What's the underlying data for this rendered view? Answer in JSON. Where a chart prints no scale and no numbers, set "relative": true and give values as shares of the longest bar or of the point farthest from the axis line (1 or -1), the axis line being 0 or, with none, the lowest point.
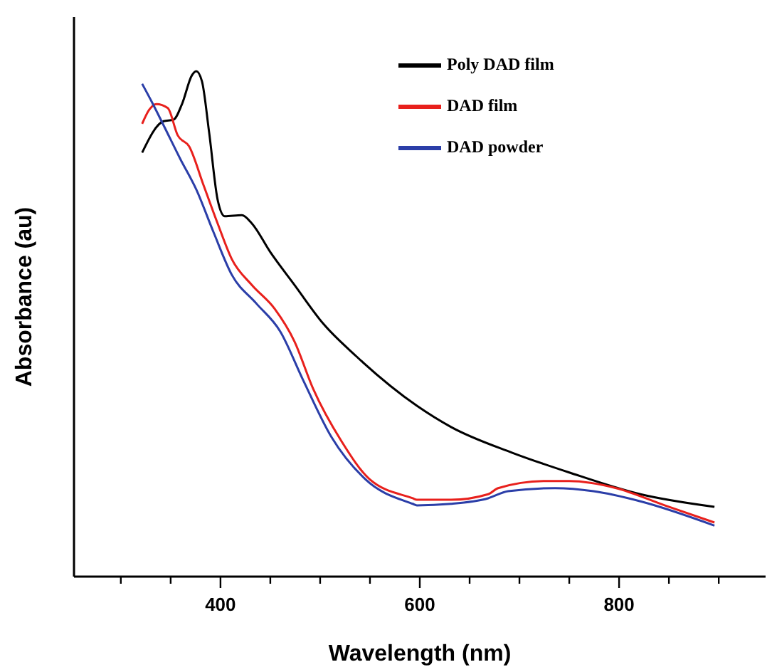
{
  "chart_data": {
    "type": "line",
    "relative": true,
    "xlabel": "Wavelength (nm)",
    "ylabel": "Absorbance (au)",
    "xlim": [
      253,
      947
    ],
    "xticks": [
      {
        "value": 300,
        "label": null
      },
      {
        "value": 350,
        "label": null
      },
      400,
      {
        "value": 450,
        "label": null
      },
      {
        "value": 500,
        "label": null
      },
      {
        "value": 550,
        "label": null
      },
      600,
      {
        "value": 650,
        "label": null
      },
      {
        "value": 700,
        "label": null
      },
      {
        "value": 750,
        "label": null
      },
      800,
      {
        "value": 850,
        "label": null
      },
      {
        "value": 900,
        "label": null
      }
    ],
    "legend": "top right",
    "grid": false,
    "marker": "none",
    "line_style": "solid",
    "series": [
      {
        "name": "Poly DAD film",
        "color": "#000000",
        "x": [
          321.4,
          342.9,
          352.9,
          361.4,
          371.4,
          375.7,
          381.4,
          388.6,
          397.1,
          404.3,
          421.4,
          431.4,
          450.0,
          474.3,
          502.9,
          535.7,
          597.1,
          631.4,
          692.9,
          750.0,
          821.4,
          895.7
        ],
        "values": [
          0.839,
          0.901,
          0.904,
          0.935,
          0.992,
          1,
          0.98,
          0.879,
          0.746,
          0.713,
          0.715,
          0.699,
          0.642,
          0.577,
          0.501,
          0.437,
          0.338,
          0.296,
          0.245,
          0.206,
          0.163,
          0.138
        ]
      },
      {
        "name": "DAD film",
        "color": "#e8201c",
        "x": [
          321.4,
          328.6,
          335.7,
          347.1,
          357.1,
          368.6,
          382.9,
          397.1,
          411.4,
          431.4,
          454.3,
          474.3,
          492.9,
          521.4,
          550.0,
          592.9,
          597.1,
          631.4,
          668.6,
          678.6,
          725.7,
          750.0,
          797.1,
          845.7,
          895.7
        ],
        "values": [
          0.896,
          0.924,
          0.935,
          0.927,
          0.873,
          0.851,
          0.775,
          0.699,
          0.628,
          0.577,
          0.53,
          0.465,
          0.372,
          0.268,
          0.192,
          0.155,
          0.152,
          0.152,
          0.163,
          0.175,
          0.189,
          0.189,
          0.175,
          0.141,
          0.107
        ]
      },
      {
        "name": "DAD powder",
        "color": "#2b3ea8",
        "x": [
          321.4,
          331.4,
          342.9,
          360.0,
          375.7,
          392.9,
          411.4,
          435.7,
          460.0,
          482.9,
          511.4,
          545.7,
          592.9,
          597.1,
          631.4,
          668.6,
          688.6,
          735.7,
          774.3,
          821.4,
          895.7
        ],
        "values": [
          0.975,
          0.938,
          0.893,
          0.825,
          0.766,
          0.682,
          0.597,
          0.541,
          0.485,
          0.389,
          0.276,
          0.192,
          0.144,
          0.141,
          0.144,
          0.155,
          0.169,
          0.175,
          0.169,
          0.149,
          0.101
        ]
      }
    ]
  }
}
